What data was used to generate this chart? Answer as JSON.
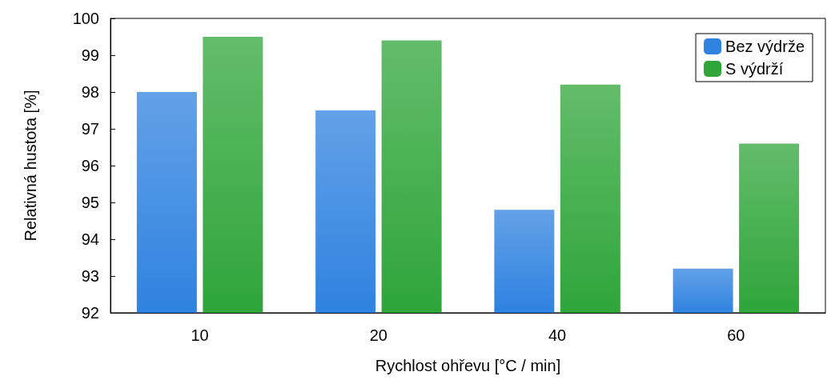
{
  "chart_data": {
    "type": "bar",
    "xlabel": "Rychlost ohřevu [°C / min]",
    "ylabel": "Relativná hustota [%]",
    "categories": [
      "10",
      "20",
      "40",
      "60"
    ],
    "series": [
      {
        "name": "Bez výdrže",
        "color": "#2f82e0",
        "values": [
          98.0,
          97.5,
          94.8,
          93.2
        ]
      },
      {
        "name": "S výdrží",
        "color": "#2fa53a",
        "values": [
          99.5,
          99.4,
          98.2,
          96.6
        ]
      }
    ],
    "ylim": [
      92,
      100
    ],
    "yticks": [
      92,
      93,
      94,
      95,
      96,
      97,
      98,
      99,
      100
    ],
    "grid": false,
    "legend": "top right"
  }
}
